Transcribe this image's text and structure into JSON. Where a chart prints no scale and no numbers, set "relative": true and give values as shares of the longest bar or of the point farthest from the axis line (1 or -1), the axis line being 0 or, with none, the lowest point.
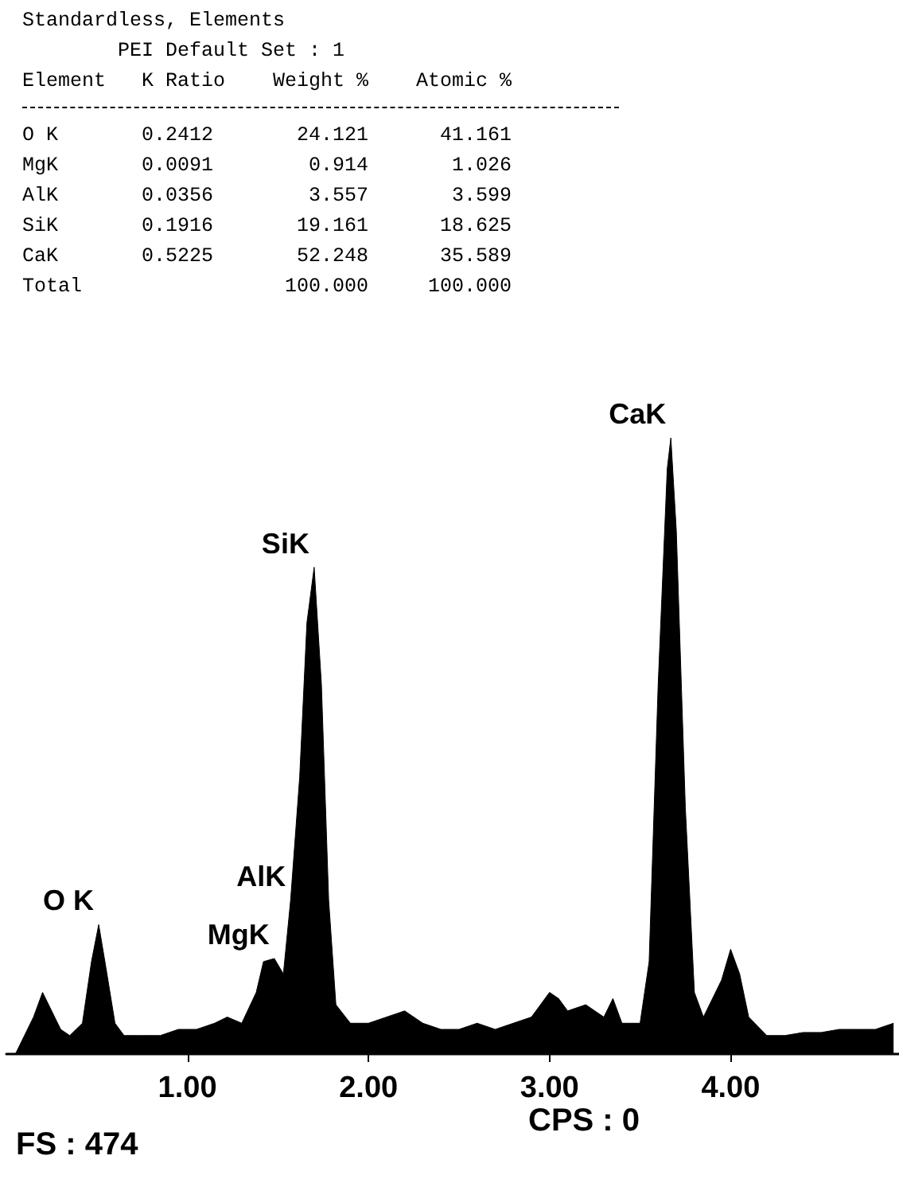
{
  "chart_data": {
    "type": "area",
    "relative": true,
    "grid": false,
    "marker": "none",
    "xlim": [
      0,
      4.93
    ],
    "xticks": [
      {
        "value": 1,
        "label": "1.00"
      },
      {
        "value": 2,
        "label": "2.00"
      },
      {
        "value": 3,
        "label": "3.00"
      },
      {
        "value": 4,
        "label": "4.00"
      }
    ],
    "annotations": [
      "Standardless, Elements",
      "PEI Default Set : 1",
      "Element   K Ratio    Weight %    Atomic %",
      "O K       0.2412       24.121      41.161",
      "MgK       0.0091        0.914       1.026",
      "AlK       0.0356        3.557       3.599",
      "SiK       0.1916       19.161      18.625",
      "CaK       0.5225       52.248      35.589",
      "Total                 100.000     100.000",
      "FS : 474",
      "CPS : 0",
      {
        "text": "O K",
        "x": 0.51,
        "y": 0.21
      },
      {
        "text": "MgK",
        "x": 1.48,
        "y": 0.155
      },
      {
        "text": "AlK",
        "x": 1.57,
        "y": 0.25
      },
      {
        "text": "SiK",
        "x": 1.7,
        "y": 0.79
      },
      {
        "text": "CaK",
        "x": 3.67,
        "y": 1
      }
    ],
    "series": [
      {
        "color": "#000000",
        "x": [
          0.05,
          0.1,
          0.15,
          0.2,
          0.25,
          0.3,
          0.35,
          0.42,
          0.47,
          0.51,
          0.55,
          0.6,
          0.65,
          0.75,
          0.85,
          0.95,
          1.05,
          1.15,
          1.22,
          1.3,
          1.38,
          1.42,
          1.48,
          1.53,
          1.57,
          1.62,
          1.66,
          1.7,
          1.74,
          1.78,
          1.82,
          1.9,
          2.0,
          2.1,
          2.2,
          2.3,
          2.4,
          2.5,
          2.6,
          2.7,
          2.8,
          2.9,
          3.0,
          3.05,
          3.1,
          3.2,
          3.3,
          3.35,
          3.4,
          3.5,
          3.55,
          3.6,
          3.65,
          3.67,
          3.7,
          3.75,
          3.8,
          3.85,
          3.95,
          4.0,
          4.05,
          4.1,
          4.2,
          4.3,
          4.4,
          4.5,
          4.6,
          4.7,
          4.8,
          4.9
        ],
        "values": [
          0,
          0.03,
          0.06,
          0.1,
          0.07,
          0.04,
          0.03,
          0.05,
          0.15,
          0.21,
          0.14,
          0.05,
          0.03,
          0.03,
          0.03,
          0.04,
          0.04,
          0.05,
          0.06,
          0.05,
          0.1,
          0.15,
          0.155,
          0.13,
          0.25,
          0.45,
          0.7,
          0.79,
          0.6,
          0.25,
          0.08,
          0.05,
          0.05,
          0.06,
          0.07,
          0.05,
          0.04,
          0.04,
          0.05,
          0.04,
          0.05,
          0.06,
          0.1,
          0.09,
          0.07,
          0.08,
          0.06,
          0.09,
          0.05,
          0.05,
          0.15,
          0.6,
          0.95,
          1,
          0.85,
          0.4,
          0.1,
          0.06,
          0.12,
          0.17,
          0.13,
          0.06,
          0.03,
          0.03,
          0.035,
          0.035,
          0.04,
          0.04,
          0.04,
          0.05
        ]
      }
    ]
  }
}
